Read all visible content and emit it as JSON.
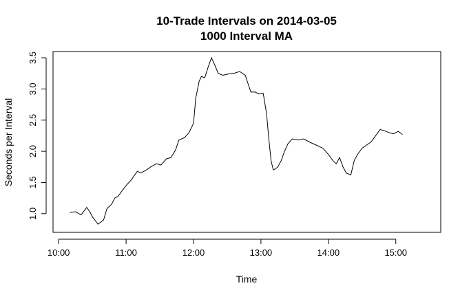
{
  "chart_data": {
    "type": "line",
    "title": "10-Trade Intervals on 2014-03-05",
    "subtitle": "1000 Interval MA",
    "xlabel": "Time",
    "ylabel": "Seconds per Interval",
    "xlim": [
      "09:55",
      "15:40"
    ],
    "ylim": [
      0.7,
      3.6
    ],
    "x_ticks": [
      "10:00",
      "11:00",
      "12:00",
      "13:00",
      "14:00",
      "15:00"
    ],
    "y_ticks": [
      "1.0",
      "1.5",
      "2.0",
      "2.5",
      "3.0",
      "3.5"
    ],
    "grid": false,
    "legend": "none",
    "line_color": "#000000",
    "series": [
      {
        "x": [
          "10:10",
          "10:15",
          "10:20",
          "10:25",
          "10:28",
          "10:30",
          "10:35",
          "10:40",
          "10:43",
          "10:47",
          "10:50",
          "10:53",
          "10:57",
          "11:00",
          "11:05",
          "11:10",
          "11:13",
          "11:18",
          "11:22",
          "11:27",
          "11:31",
          "11:36",
          "11:40",
          "11:44",
          "11:47",
          "11:52",
          "11:56",
          "12:00",
          "12:02",
          "12:05",
          "12:07",
          "12:10",
          "12:13",
          "12:16",
          "12:19",
          "12:22",
          "12:26",
          "12:31",
          "12:36",
          "12:41",
          "12:46",
          "12:51",
          "12:55",
          "12:58",
          "13:02",
          "13:05",
          "13:07",
          "13:09",
          "13:11",
          "13:13",
          "13:15",
          "13:18",
          "13:21",
          "13:24",
          "13:28",
          "13:33",
          "13:38",
          "13:43",
          "13:49",
          "13:55",
          "14:00",
          "14:04",
          "14:07",
          "14:10",
          "14:13",
          "14:16",
          "14:20",
          "14:23",
          "14:26",
          "14:30",
          "14:34",
          "14:38",
          "14:42",
          "14:46",
          "14:50",
          "14:54",
          "14:58",
          "15:02",
          "15:06"
        ],
        "y": [
          1.02,
          1.03,
          0.98,
          1.1,
          1.02,
          0.95,
          0.83,
          0.9,
          1.08,
          1.15,
          1.25,
          1.28,
          1.38,
          1.45,
          1.55,
          1.68,
          1.65,
          1.7,
          1.75,
          1.8,
          1.78,
          1.88,
          1.9,
          2.02,
          2.18,
          2.22,
          2.3,
          2.45,
          2.85,
          3.12,
          3.2,
          3.18,
          3.35,
          3.5,
          3.38,
          3.25,
          3.22,
          3.24,
          3.25,
          3.28,
          3.22,
          2.95,
          2.95,
          2.92,
          2.93,
          2.6,
          2.2,
          1.85,
          1.7,
          1.72,
          1.75,
          1.85,
          2.0,
          2.12,
          2.2,
          2.18,
          2.2,
          2.15,
          2.1,
          2.05,
          1.95,
          1.85,
          1.8,
          1.9,
          1.75,
          1.65,
          1.62,
          1.85,
          1.95,
          2.05,
          2.1,
          2.15,
          2.25,
          2.35,
          2.33,
          2.3,
          2.28,
          2.32,
          2.27
        ]
      }
    ]
  }
}
